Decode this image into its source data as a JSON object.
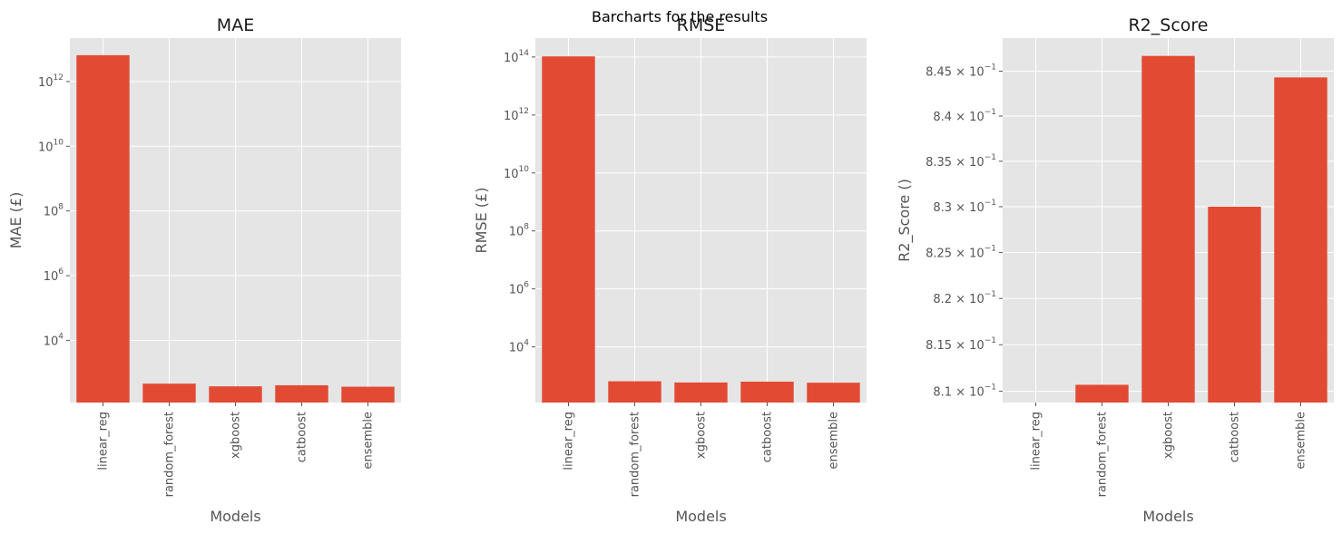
{
  "figure": {
    "suptitle": "Barcharts for the results"
  },
  "colors": {
    "bar": "#e24a33",
    "panel_bg": "#e5e5e5",
    "grid": "#ffffff",
    "text": "#555555"
  },
  "chart_data": [
    {
      "type": "bar",
      "title": "MAE",
      "xlabel": "Models",
      "ylabel": "MAE (£)",
      "yscale": "log",
      "categories": [
        "linear_reg",
        "random_forest",
        "xgboost",
        "catboost",
        "ensemble"
      ],
      "values": [
        6500000000000.0,
        460,
        380,
        410,
        370
      ],
      "ylim": [
        120,
        22000000000000.0
      ],
      "yticks": [
        {
          "value": 10000.0,
          "base": "10",
          "exp": "4"
        },
        {
          "value": 1000000.0,
          "base": "10",
          "exp": "6"
        },
        {
          "value": 100000000.0,
          "base": "10",
          "exp": "8"
        },
        {
          "value": 10000000000.0,
          "base": "10",
          "exp": "10"
        },
        {
          "value": 1000000000000.0,
          "base": "10",
          "exp": "12"
        }
      ],
      "grid": true
    },
    {
      "type": "bar",
      "title": "RMSE",
      "xlabel": "Models",
      "ylabel": "RMSE (£)",
      "yscale": "log",
      "categories": [
        "linear_reg",
        "random_forest",
        "xgboost",
        "catboost",
        "ensemble"
      ],
      "values": [
        105000000000000.0,
        650,
        590,
        630,
        580
      ],
      "ylim": [
        120,
        450000000000000.0
      ],
      "yticks": [
        {
          "value": 10000.0,
          "base": "10",
          "exp": "4"
        },
        {
          "value": 1000000.0,
          "base": "10",
          "exp": "6"
        },
        {
          "value": 100000000.0,
          "base": "10",
          "exp": "8"
        },
        {
          "value": 10000000000.0,
          "base": "10",
          "exp": "10"
        },
        {
          "value": 1000000000000.0,
          "base": "10",
          "exp": "12"
        },
        {
          "value": 100000000000000.0,
          "base": "10",
          "exp": "14"
        }
      ],
      "grid": true
    },
    {
      "type": "bar",
      "title": "R2_Score",
      "xlabel": "Models",
      "ylabel": "R2_Score ()",
      "yscale": "log",
      "categories": [
        "linear_reg",
        "random_forest",
        "xgboost",
        "catboost",
        "ensemble"
      ],
      "values": [
        0.807,
        0.8107,
        0.8467,
        0.83,
        0.8443
      ],
      "ylim": [
        0.8088,
        0.8487
      ],
      "yticks": [
        {
          "value": 0.81,
          "base": "8.1 × 10",
          "exp": "−1"
        },
        {
          "value": 0.815,
          "base": "8.15 × 10",
          "exp": "−1"
        },
        {
          "value": 0.82,
          "base": "8.2 × 10",
          "exp": "−1"
        },
        {
          "value": 0.825,
          "base": "8.25 × 10",
          "exp": "−1"
        },
        {
          "value": 0.83,
          "base": "8.3 × 10",
          "exp": "−1"
        },
        {
          "value": 0.835,
          "base": "8.35 × 10",
          "exp": "−1"
        },
        {
          "value": 0.84,
          "base": "8.4 × 10",
          "exp": "−1"
        },
        {
          "value": 0.845,
          "base": "8.45 × 10",
          "exp": "−1"
        }
      ],
      "grid": true
    }
  ]
}
